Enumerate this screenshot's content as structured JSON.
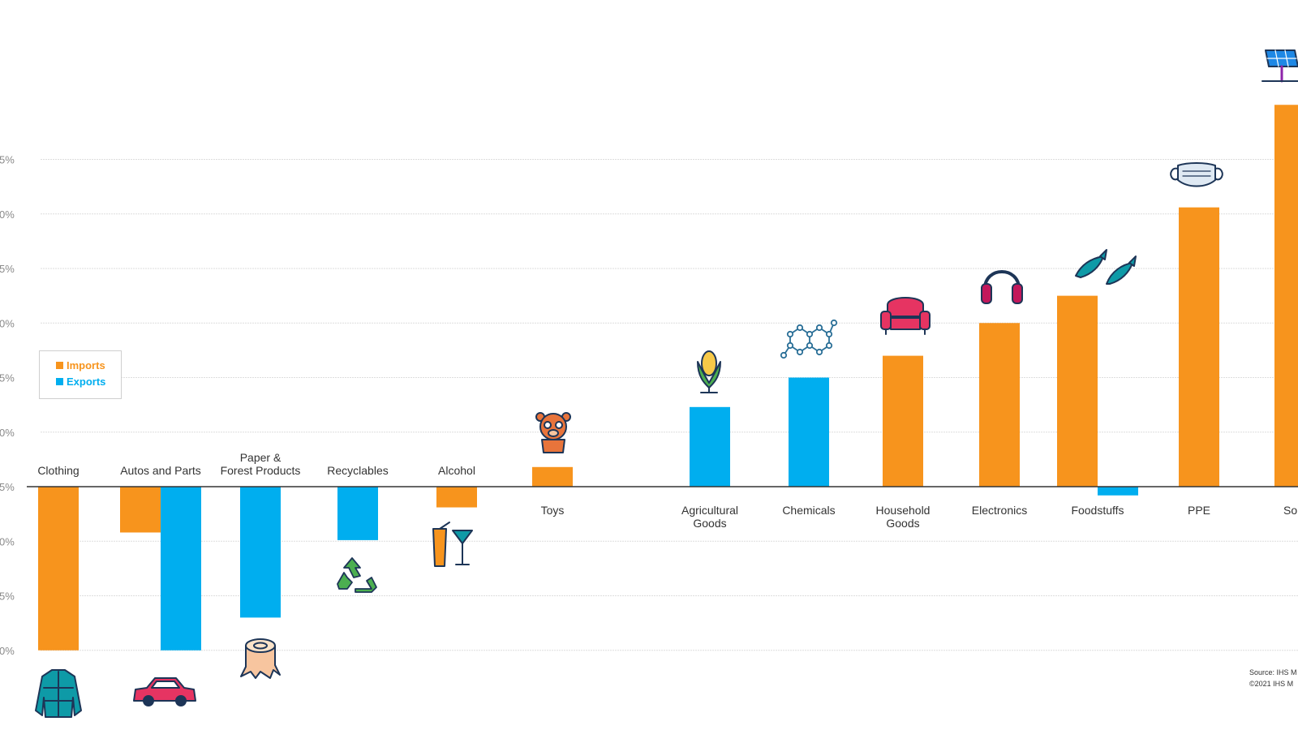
{
  "chart_data": {
    "type": "bar",
    "orientation": "vertical",
    "ylim": [
      -15,
      35
    ],
    "y_tick_step": 5,
    "tick_suffix": "%",
    "tick_labels_visible": [
      "5%",
      "0%",
      "5%",
      "0%",
      "5%",
      "0%",
      "5%",
      "0%",
      "5%",
      "0%",
      "5%"
    ],
    "grid": true,
    "legend_position": "left",
    "categories": [
      {
        "label": [
          "Clothing"
        ],
        "label_side": "top",
        "icon": "puffer-jacket-icon",
        "imports": -15,
        "exports": null
      },
      {
        "label": [
          "Autos and Parts"
        ],
        "label_side": "top",
        "icon": "car-icon",
        "imports": -4.2,
        "exports": -15
      },
      {
        "label": [
          "Paper &",
          "Forest Products"
        ],
        "label_side": "top",
        "icon": "tree-stump-icon",
        "imports": null,
        "exports": -12
      },
      {
        "label": [
          "Recyclables"
        ],
        "label_side": "top",
        "icon": "recycle-icon",
        "imports": null,
        "exports": -4.9
      },
      {
        "label": [
          "Alcohol"
        ],
        "label_side": "top",
        "icon": "drinks-icon",
        "imports": -1.9,
        "exports": null
      },
      {
        "label": [
          "Toys"
        ],
        "label_side": "bottom",
        "icon": "teddy-bear-icon",
        "imports": 1.8,
        "exports": null
      },
      {
        "label": [
          "Agricultural",
          "Goods"
        ],
        "label_side": "bottom",
        "icon": "corn-icon",
        "imports": null,
        "exports": 7.3
      },
      {
        "label": [
          "Chemicals"
        ],
        "label_side": "bottom",
        "icon": "molecule-icon",
        "imports": null,
        "exports": 10
      },
      {
        "label": [
          "Household",
          "Goods"
        ],
        "label_side": "bottom",
        "icon": "armchair-icon",
        "imports": 12,
        "exports": null
      },
      {
        "label": [
          "Electronics"
        ],
        "label_side": "bottom",
        "icon": "headphones-icon",
        "imports": 15,
        "exports": null
      },
      {
        "label": [
          "Foodstuffs"
        ],
        "label_side": "bottom",
        "icon": "fish-icon",
        "imports": 17.5,
        "exports": -0.8
      },
      {
        "label": [
          "PPE"
        ],
        "label_side": "bottom",
        "icon": "face-mask-icon",
        "imports": 25.6,
        "exports": null
      },
      {
        "label": [
          "Sola"
        ],
        "label_side": "bottom",
        "icon": "solar-panel-icon",
        "imports": 35,
        "exports": null
      }
    ],
    "series": [
      {
        "name": "Imports",
        "key": "imports",
        "color": "#F7941D"
      },
      {
        "name": "Exports",
        "key": "exports",
        "color": "#00AEEF"
      }
    ]
  },
  "source": [
    "Source: IHS M",
    "©2021 IHS M"
  ]
}
